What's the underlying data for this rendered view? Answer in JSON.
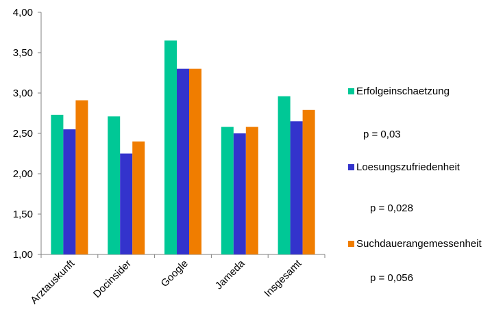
{
  "chart_data": {
    "type": "bar",
    "categories": [
      "Arztauskunft",
      "Docinsider",
      "Google",
      "Jameda",
      "Insgesamt"
    ],
    "series": [
      {
        "name": "Erfolgeinschaetzung",
        "color": "#00c896",
        "values": [
          2.73,
          2.71,
          3.65,
          2.58,
          2.96
        ]
      },
      {
        "name": "Loesungszufriedenheit",
        "color": "#3333cc",
        "values": [
          2.55,
          2.25,
          3.3,
          2.5,
          2.65
        ]
      },
      {
        "name": "Suchdauerangemessenheit",
        "color": "#f07d00",
        "values": [
          2.91,
          2.4,
          3.3,
          2.58,
          2.79
        ]
      }
    ],
    "ylim": [
      1.0,
      4.0
    ],
    "yticks": [
      "1,00",
      "1,50",
      "2,00",
      "2,50",
      "3,00",
      "3,50",
      "4,00"
    ],
    "grid": false,
    "legend_position": "right",
    "annotations": [
      "p = 0,03",
      "p = 0,028",
      "p = 0,056"
    ]
  }
}
